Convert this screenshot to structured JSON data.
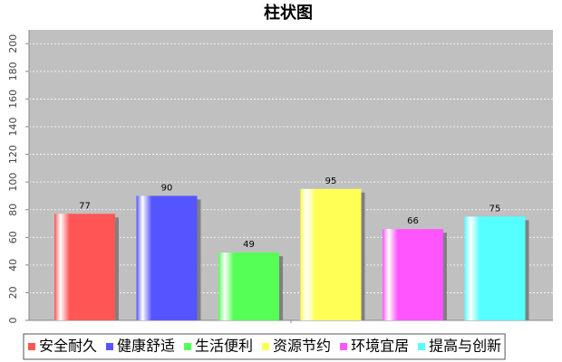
{
  "chart_data": {
    "type": "bar",
    "title": "柱状图",
    "categories": [
      null
    ],
    "series": [
      {
        "name": "安全耐久",
        "color": "#ff5555",
        "values": [
          77
        ]
      },
      {
        "name": "健康舒适",
        "color": "#5555ff",
        "values": [
          90
        ]
      },
      {
        "name": "生活便利",
        "color": "#55ff55",
        "values": [
          49
        ]
      },
      {
        "name": "资源节约",
        "color": "#ffff55",
        "values": [
          95
        ]
      },
      {
        "name": "环境宜居",
        "color": "#ff55ff",
        "values": [
          66
        ]
      },
      {
        "name": "提高与创新",
        "color": "#55ffff",
        "values": [
          75
        ]
      }
    ],
    "ylim": [
      0,
      210
    ],
    "yticks": [
      0,
      20,
      40,
      60,
      80,
      100,
      120,
      140,
      160,
      180,
      200
    ],
    "grid": true
  }
}
